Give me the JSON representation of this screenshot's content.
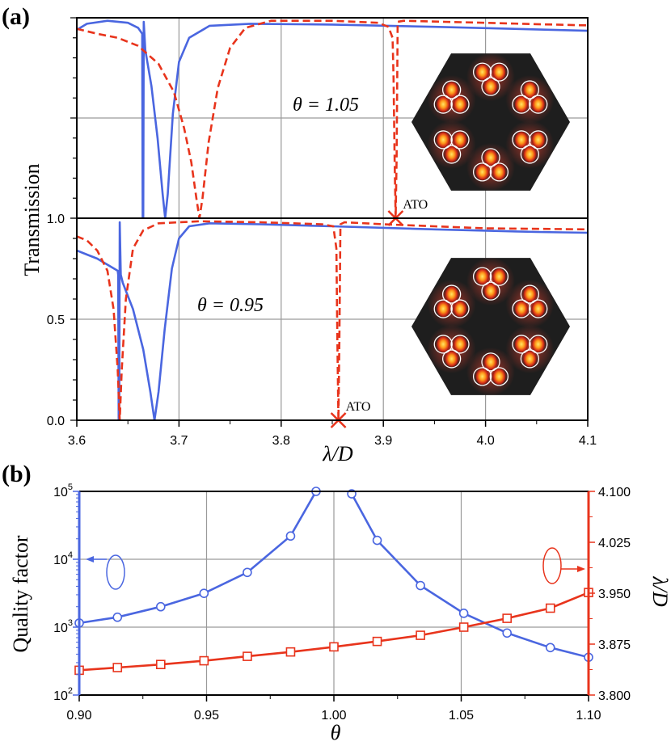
{
  "colors": {
    "blue": "#4a66e0",
    "red": "#e8341c",
    "grid": "#9a9a9a",
    "inset_bg": "#1e1e1e"
  },
  "chart_data": [
    {
      "type": "line",
      "panel": "(a)",
      "ylabel": "Transmission",
      "xlabel": "λ/D",
      "xlim": [
        3.6,
        4.1
      ],
      "x_ticks": [
        "3.6",
        "3.7",
        "3.8",
        "3.9",
        "4.0",
        "4.1"
      ],
      "subplots": [
        {
          "annotation": "θ = 1.05",
          "ylim": [
            0,
            1
          ],
          "y_ticks": [],
          "ato_label": "ATO",
          "ato_point": [
            3.912,
            0.0
          ],
          "series": [
            {
              "name": "solid",
              "color": "#4a66e0",
              "style": "solid",
              "points": [
                [
                  3.6,
                  0.94
                ],
                [
                  3.61,
                  0.97
                ],
                [
                  3.63,
                  0.985
                ],
                [
                  3.65,
                  0.975
                ],
                [
                  3.66,
                  0.95
                ],
                [
                  3.664,
                  0.92
                ],
                [
                  3.6645,
                  0.0
                ],
                [
                  3.665,
                  0.0
                ],
                [
                  3.6655,
                  0.98
                ],
                [
                  3.667,
                  0.84
                ],
                [
                  3.673,
                  0.66
                ],
                [
                  3.679,
                  0.4
                ],
                [
                  3.684,
                  0.12
                ],
                [
                  3.6865,
                  0.0
                ],
                [
                  3.689,
                  0.12
                ],
                [
                  3.694,
                  0.52
                ],
                [
                  3.7,
                  0.78
                ],
                [
                  3.71,
                  0.9
                ],
                [
                  3.73,
                  0.96
                ],
                [
                  3.77,
                  0.97
                ],
                [
                  3.85,
                  0.966
                ],
                [
                  3.95,
                  0.955
                ],
                [
                  4.05,
                  0.942
                ],
                [
                  4.1,
                  0.935
                ]
              ]
            },
            {
              "name": "dashed",
              "color": "#e8341c",
              "style": "dashed",
              "points": [
                [
                  3.6,
                  0.945
                ],
                [
                  3.62,
                  0.92
                ],
                [
                  3.64,
                  0.9
                ],
                [
                  3.66,
                  0.86
                ],
                [
                  3.68,
                  0.77
                ],
                [
                  3.695,
                  0.63
                ],
                [
                  3.705,
                  0.45
                ],
                [
                  3.712,
                  0.28
                ],
                [
                  3.717,
                  0.1
                ],
                [
                  3.72,
                  0.0
                ],
                [
                  3.723,
                  0.1
                ],
                [
                  3.729,
                  0.38
                ],
                [
                  3.738,
                  0.65
                ],
                [
                  3.75,
                  0.85
                ],
                [
                  3.765,
                  0.95
                ],
                [
                  3.79,
                  0.985
                ],
                [
                  3.85,
                  0.985
                ],
                [
                  3.895,
                  0.975
                ],
                [
                  3.905,
                  0.955
                ],
                [
                  3.909,
                  0.9
                ],
                [
                  3.91,
                  0.7
                ],
                [
                  3.911,
                  0.3
                ],
                [
                  3.912,
                  0.0
                ],
                [
                  3.913,
                  0.3
                ],
                [
                  3.914,
                  0.98
                ],
                [
                  3.92,
                  0.985
                ],
                [
                  3.96,
                  0.98
                ],
                [
                  4.0,
                  0.975
                ],
                [
                  4.05,
                  0.968
                ],
                [
                  4.1,
                  0.962
                ]
              ]
            }
          ]
        },
        {
          "annotation": "θ = 0.95",
          "ylim": [
            0,
            1
          ],
          "y_ticks": [
            "0.0",
            "0.5",
            "1.0"
          ],
          "ato_label": "ATO",
          "ato_point": [
            3.856,
            0.0
          ],
          "series": [
            {
              "name": "solid",
              "color": "#4a66e0",
              "style": "solid",
              "points": [
                [
                  3.6,
                  0.84
                ],
                [
                  3.61,
                  0.82
                ],
                [
                  3.62,
                  0.8
                ],
                [
                  3.63,
                  0.77
                ],
                [
                  3.64,
                  0.74
                ],
                [
                  3.6405,
                  0.72
                ],
                [
                  3.641,
                  0.0
                ],
                [
                  3.6415,
                  0.0
                ],
                [
                  3.642,
                  0.98
                ],
                [
                  3.643,
                  0.72
                ],
                [
                  3.645,
                  0.68
                ],
                [
                  3.655,
                  0.55
                ],
                [
                  3.665,
                  0.35
                ],
                [
                  3.672,
                  0.14
                ],
                [
                  3.676,
                  0.0
                ],
                [
                  3.68,
                  0.14
                ],
                [
                  3.686,
                  0.45
                ],
                [
                  3.693,
                  0.75
                ],
                [
                  3.7,
                  0.9
                ],
                [
                  3.71,
                  0.96
                ],
                [
                  3.73,
                  0.975
                ],
                [
                  3.78,
                  0.97
                ],
                [
                  3.85,
                  0.96
                ],
                [
                  3.95,
                  0.945
                ],
                [
                  4.05,
                  0.932
                ],
                [
                  4.1,
                  0.928
                ]
              ]
            },
            {
              "name": "dashed",
              "color": "#e8341c",
              "style": "dashed",
              "points": [
                [
                  3.6,
                  0.91
                ],
                [
                  3.61,
                  0.89
                ],
                [
                  3.62,
                  0.84
                ],
                [
                  3.63,
                  0.74
                ],
                [
                  3.636,
                  0.55
                ],
                [
                  3.64,
                  0.25
                ],
                [
                  3.642,
                  0.0
                ],
                [
                  3.644,
                  0.25
                ],
                [
                  3.648,
                  0.6
                ],
                [
                  3.655,
                  0.85
                ],
                [
                  3.665,
                  0.94
                ],
                [
                  3.68,
                  0.975
                ],
                [
                  3.72,
                  0.985
                ],
                [
                  3.78,
                  0.98
                ],
                [
                  3.84,
                  0.97
                ],
                [
                  3.851,
                  0.96
                ],
                [
                  3.854,
                  0.85
                ],
                [
                  3.855,
                  0.4
                ],
                [
                  3.856,
                  0.0
                ],
                [
                  3.857,
                  0.4
                ],
                [
                  3.858,
                  0.97
                ],
                [
                  3.862,
                  0.98
                ],
                [
                  3.9,
                  0.97
                ],
                [
                  3.95,
                  0.96
                ],
                [
                  4.0,
                  0.95
                ],
                [
                  4.1,
                  0.945
                ]
              ]
            }
          ]
        }
      ]
    },
    {
      "type": "line",
      "panel": "(b)",
      "xlabel": "θ",
      "xlim": [
        0.9,
        1.1
      ],
      "x_ticks": [
        "0.90",
        "0.95",
        "1.00",
        "1.05",
        "1.10"
      ],
      "ylabel_left": "Quality factor",
      "ylim_left_log10": [
        2,
        5
      ],
      "y_ticks_left": [
        {
          "base": "10",
          "exp": "2"
        },
        {
          "base": "10",
          "exp": "3"
        },
        {
          "base": "10",
          "exp": "4"
        },
        {
          "base": "10",
          "exp": "5"
        }
      ],
      "ylabel_right": "λ/D",
      "ylim_right": [
        3.8,
        4.1
      ],
      "y_ticks_right": [
        "3.800",
        "3.875",
        "3.950",
        "4.025",
        "4.100"
      ],
      "series": [
        {
          "name": "Quality factor",
          "axis": "left",
          "marker": "circle",
          "color": "#4a66e0",
          "x": [
            0.9,
            0.915,
            0.932,
            0.949,
            0.966,
            0.983,
            0.993
          ],
          "y": [
            1150,
            1400,
            2000,
            3150,
            6400,
            22000,
            100000
          ]
        },
        {
          "name": "Quality factor (θ>1)",
          "axis": "left",
          "marker": "circle",
          "color": "#4a66e0",
          "x": [
            1.007,
            1.017,
            1.034,
            1.051,
            1.068,
            1.085,
            1.1
          ],
          "y": [
            92000,
            19000,
            4100,
            1600,
            820,
            500,
            360
          ]
        },
        {
          "name": "λ/D",
          "axis": "right",
          "marker": "square",
          "color": "#e8341c",
          "x": [
            0.9,
            0.915,
            0.932,
            0.949,
            0.966,
            0.983,
            1.0,
            1.017,
            1.034,
            1.051,
            1.068,
            1.085,
            1.1
          ],
          "y": [
            3.8365,
            3.8405,
            3.845,
            3.8505,
            3.857,
            3.8635,
            3.871,
            3.879,
            3.888,
            3.9,
            3.913,
            3.928,
            3.951
          ]
        }
      ]
    }
  ]
}
